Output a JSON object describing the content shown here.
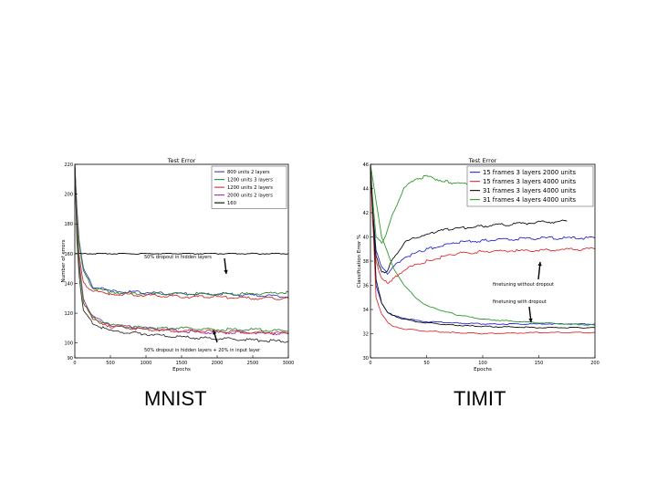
{
  "captions": {
    "left": "MNIST",
    "right": "TIMIT"
  },
  "chart_data": [
    {
      "type": "line",
      "title": "Test Error",
      "xlabel": "Epochs",
      "ylabel": "Number of errors",
      "xlim": [
        0,
        3000
      ],
      "ylim": [
        90,
        220
      ],
      "xticks": [
        "0",
        "500",
        "1000",
        "1500",
        "2000",
        "2500",
        "3000"
      ],
      "yticks": [
        "90",
        "100",
        "120",
        "140",
        "160",
        "180",
        "200",
        "220"
      ],
      "grid": false,
      "legend_position": "top-right",
      "series": [
        {
          "name": "800 units 2 layers",
          "color": "#3a3ac8",
          "x": [
            0,
            30,
            60,
            120,
            250,
            500,
            1000,
            1500,
            2000,
            2500,
            3000
          ],
          "y": [
            220,
            190,
            170,
            150,
            138,
            135,
            134,
            133,
            133,
            132,
            131
          ]
        },
        {
          "name": "1200 units 3 layers",
          "color": "#2e8b2e",
          "x": [
            0,
            30,
            60,
            120,
            250,
            500,
            1000,
            1500,
            2000,
            2500,
            3000
          ],
          "y": [
            220,
            188,
            168,
            148,
            137,
            134,
            133,
            133,
            133,
            133,
            134
          ]
        },
        {
          "name": "1200 units 2 layers",
          "color": "#d03030",
          "x": [
            0,
            30,
            60,
            120,
            250,
            500,
            1000,
            1500,
            2000,
            2500,
            3000
          ],
          "y": [
            220,
            185,
            160,
            140,
            135,
            133,
            132,
            131,
            131,
            130,
            130
          ]
        },
        {
          "name": "2000 units 2 layers",
          "color": "#9a2ab0",
          "x": [
            0,
            30,
            60,
            120,
            250,
            500,
            1000,
            1500,
            2000,
            2500,
            3000
          ],
          "y": [
            220,
            180,
            155,
            130,
            118,
            112,
            110,
            108,
            107,
            107,
            106
          ]
        },
        {
          "name": "160",
          "color": "#000000",
          "x": [
            0,
            3000
          ],
          "y": [
            160,
            160
          ]
        },
        {
          "name": "",
          "color": "#d03030",
          "x": [
            0,
            30,
            60,
            120,
            250,
            500,
            1000,
            1500,
            2000,
            2500,
            3000
          ],
          "y": [
            220,
            175,
            150,
            128,
            116,
            111,
            109,
            108,
            108,
            107,
            107
          ]
        },
        {
          "name": "",
          "color": "#2e8b2e",
          "x": [
            0,
            30,
            60,
            120,
            250,
            500,
            1000,
            1500,
            2000,
            2500,
            3000
          ],
          "y": [
            220,
            178,
            152,
            127,
            117,
            112,
            110,
            110,
            109,
            109,
            108
          ]
        },
        {
          "name": "",
          "color": "#333333",
          "x": [
            0,
            30,
            60,
            120,
            250,
            500,
            1000,
            1500,
            2000,
            2500,
            3000
          ],
          "y": [
            220,
            170,
            145,
            122,
            113,
            108,
            106,
            104,
            103,
            102,
            101
          ]
        }
      ],
      "annotations": [
        "50% dropout in hidden layers",
        "50% dropout in hidden layers + 20% in input layer"
      ]
    },
    {
      "type": "line",
      "title": "Test Error",
      "xlabel": "Epochs",
      "ylabel": "Classification Error %",
      "xlim": [
        0,
        200
      ],
      "ylim": [
        30,
        46
      ],
      "xticks": [
        "0",
        "50",
        "100",
        "150",
        "200"
      ],
      "yticks": [
        "30",
        "32",
        "34",
        "36",
        "38",
        "40",
        "42",
        "44",
        "46"
      ],
      "grid": false,
      "legend_position": "top-right",
      "series": [
        {
          "name": "15 frames 3 layers 2000 units",
          "color": "#2a2ad0",
          "x": [
            0,
            2,
            5,
            10,
            15,
            20,
            30,
            50,
            75,
            100,
            150,
            200
          ],
          "y": [
            46,
            42,
            39,
            37.5,
            37,
            37.5,
            38.3,
            39.0,
            39.5,
            39.7,
            39.9,
            39.9
          ]
        },
        {
          "name": "15 frames 3 layers 4000 units",
          "color": "#e03030",
          "x": [
            0,
            2,
            5,
            10,
            15,
            20,
            30,
            50,
            75,
            100,
            150,
            200
          ],
          "y": [
            46,
            41,
            38,
            36.5,
            36.2,
            36.5,
            37.3,
            38.0,
            38.6,
            38.8,
            38.9,
            39.0
          ]
        },
        {
          "name": "31 frames 3 layers 4000 units",
          "color": "#101010",
          "x": [
            0,
            2,
            5,
            10,
            15,
            20,
            30,
            50,
            75,
            100,
            150,
            175
          ],
          "y": [
            46,
            42,
            38.5,
            37,
            37.2,
            38.2,
            39.5,
            40.3,
            40.7,
            40.9,
            41.2,
            41.3
          ]
        },
        {
          "name": "31 frames 4 layers 4000 units",
          "color": "#2e9a2e",
          "x": [
            0,
            2,
            5,
            10,
            15,
            20,
            30,
            40,
            50,
            70,
            100,
            150
          ],
          "y": [
            46,
            43,
            40,
            39.5,
            40.5,
            42.0,
            44.0,
            44.8,
            45.0,
            44.5,
            44.3,
            44.5
          ]
        },
        {
          "name": "",
          "color": "#2a2ad0",
          "x": [
            0,
            5,
            10,
            15,
            20,
            30,
            40,
            50,
            75,
            100,
            150,
            200
          ],
          "y": [
            46,
            36,
            34.5,
            33.8,
            33.5,
            33.3,
            33.1,
            33.0,
            32.9,
            32.8,
            32.8,
            32.8
          ]
        },
        {
          "name": "",
          "color": "#e03030",
          "x": [
            0,
            5,
            10,
            15,
            20,
            30,
            40,
            50,
            75,
            100,
            150,
            200
          ],
          "y": [
            46,
            35,
            33.6,
            33.0,
            32.6,
            32.4,
            32.3,
            32.2,
            32.1,
            32.0,
            32.1,
            32.1
          ]
        },
        {
          "name": "",
          "color": "#101010",
          "x": [
            0,
            5,
            10,
            15,
            20,
            30,
            40,
            50,
            75,
            100,
            150,
            200
          ],
          "y": [
            46,
            36.5,
            34.5,
            33.8,
            33.5,
            33.2,
            33.0,
            32.9,
            32.7,
            32.6,
            32.5,
            32.5
          ]
        },
        {
          "name": "",
          "color": "#2e9a2e",
          "x": [
            0,
            10,
            20,
            30,
            40,
            50,
            75,
            100,
            150,
            200
          ],
          "y": [
            46,
            40,
            37.5,
            36.0,
            35.0,
            34.3,
            33.6,
            33.2,
            32.9,
            32.7
          ]
        }
      ],
      "annotations": [
        "finetuning without dropout",
        "finetuning with dropout"
      ]
    }
  ]
}
